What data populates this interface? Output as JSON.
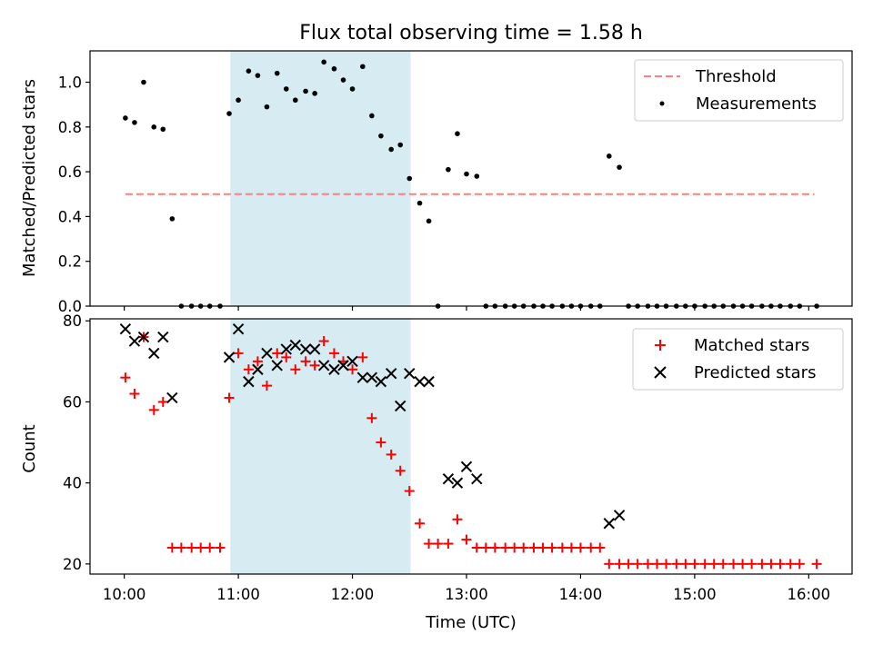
{
  "title": "Flux total observing time = 1.58 h",
  "x_ticks": [
    "10:00",
    "11:00",
    "12:00",
    "13:00",
    "14:00",
    "15:00",
    "16:00"
  ],
  "x_tick_hours": [
    10,
    11,
    12,
    13,
    14,
    15,
    16
  ],
  "xlabel": "Time (UTC)",
  "xlim": [
    9.7,
    16.38
  ],
  "shaded_span": {
    "start": 10.93,
    "end": 12.51,
    "color": "#add8e6"
  },
  "chart_data": [
    {
      "type": "scatter",
      "ylabel": "Matched/Predicted stars",
      "ylim": [
        0,
        1.14
      ],
      "y_ticks": [
        "0.0",
        "0.2",
        "0.4",
        "0.6",
        "0.8",
        "1.0"
      ],
      "y_tick_values": [
        0,
        0.2,
        0.4,
        0.6,
        0.8,
        1.0
      ],
      "legend": {
        "placement": "top-right",
        "threshold_label": "Threshold",
        "measurements_label": "Measurements"
      },
      "threshold": {
        "name": "Threshold",
        "value": 0.5,
        "x_range": [
          10.01,
          16.05
        ],
        "color": "#ff7f7f"
      },
      "series": [
        {
          "name": "Measurements",
          "color": "#000000",
          "x": [
            10.01,
            10.09,
            10.17,
            10.26,
            10.34,
            10.42,
            10.5,
            10.59,
            10.67,
            10.75,
            10.84,
            10.92,
            11.0,
            11.09,
            11.17,
            11.25,
            11.34,
            11.42,
            11.5,
            11.59,
            11.67,
            11.75,
            11.84,
            11.92,
            12.0,
            12.09,
            12.17,
            12.25,
            12.34,
            12.42,
            12.5,
            12.59,
            12.67,
            12.75,
            12.84,
            12.92,
            13.0,
            13.09,
            13.17,
            13.25,
            13.34,
            13.42,
            13.5,
            13.59,
            13.67,
            13.75,
            13.84,
            13.92,
            14.0,
            14.09,
            14.17,
            14.25,
            14.34,
            14.42,
            14.5,
            14.59,
            14.67,
            14.75,
            14.84,
            14.92,
            15.0,
            15.09,
            15.17,
            15.25,
            15.34,
            15.42,
            15.5,
            15.59,
            15.67,
            15.75,
            15.84,
            15.92,
            16.07
          ],
          "y": [
            0.84,
            0.82,
            1.0,
            0.8,
            0.79,
            0.39,
            0.0,
            0.0,
            0.0,
            0.0,
            0.0,
            0.86,
            0.92,
            1.05,
            1.03,
            0.89,
            1.04,
            0.97,
            0.92,
            0.96,
            0.95,
            1.09,
            1.06,
            1.01,
            0.97,
            1.07,
            0.85,
            0.76,
            0.7,
            0.72,
            0.57,
            0.46,
            0.38,
            0.0,
            0.61,
            0.77,
            0.59,
            0.58,
            0.0,
            0.0,
            0.0,
            0.0,
            0.0,
            0.0,
            0.0,
            0.0,
            0.0,
            0.0,
            0.0,
            0.0,
            0.0,
            0.67,
            0.62,
            0.0,
            0.0,
            0.0,
            0.0,
            0.0,
            0.0,
            0.0,
            0.0,
            0.0,
            0.0,
            0.0,
            0.0,
            0.0,
            0.0,
            0.0,
            0.0,
            0.0,
            0.0,
            0.0,
            0.0
          ]
        }
      ]
    },
    {
      "type": "scatter",
      "ylabel": "Count",
      "ylim": [
        17.5,
        80.5
      ],
      "y_ticks": [
        "20",
        "40",
        "60",
        "80"
      ],
      "y_tick_values": [
        20,
        40,
        60,
        80
      ],
      "legend": {
        "placement": "top-right",
        "matched_label": "Matched stars",
        "predicted_label": "Predicted stars"
      },
      "series": [
        {
          "name": "Matched stars",
          "marker": "+",
          "color": "#ff0000",
          "x": [
            10.01,
            10.09,
            10.17,
            10.26,
            10.34,
            10.42,
            10.5,
            10.59,
            10.67,
            10.75,
            10.84,
            10.92,
            11.0,
            11.09,
            11.17,
            11.25,
            11.34,
            11.42,
            11.5,
            11.59,
            11.67,
            11.75,
            11.84,
            11.92,
            12.0,
            12.09,
            12.17,
            12.25,
            12.34,
            12.42,
            12.5,
            12.59,
            12.67,
            12.75,
            12.84,
            12.92,
            13.0,
            13.09,
            13.17,
            13.25,
            13.34,
            13.42,
            13.5,
            13.59,
            13.67,
            13.75,
            13.84,
            13.92,
            14.0,
            14.09,
            14.17,
            14.25,
            14.34,
            14.42,
            14.5,
            14.59,
            14.67,
            14.75,
            14.84,
            14.92,
            15.0,
            15.09,
            15.17,
            15.25,
            15.34,
            15.42,
            15.5,
            15.59,
            15.67,
            15.75,
            15.84,
            15.92,
            16.07
          ],
          "y": [
            66,
            62,
            76,
            58,
            60,
            24,
            24,
            24,
            24,
            24,
            24,
            61,
            72,
            68,
            70,
            64,
            72,
            71,
            68,
            70,
            69,
            75,
            72,
            70,
            68,
            71,
            56,
            50,
            47,
            43,
            38,
            30,
            25,
            25,
            25,
            31,
            26,
            24,
            24,
            24,
            24,
            24,
            24,
            24,
            24,
            24,
            24,
            24,
            24,
            24,
            24,
            20,
            20,
            20,
            20,
            20,
            20,
            20,
            20,
            20,
            20,
            20,
            20,
            20,
            20,
            20,
            20,
            20,
            20,
            20,
            20,
            20,
            20
          ]
        },
        {
          "name": "Predicted stars",
          "marker": "x",
          "color": "#000000",
          "x": [
            10.01,
            10.09,
            10.17,
            10.26,
            10.34,
            10.42,
            10.92,
            11.0,
            11.09,
            11.17,
            11.25,
            11.34,
            11.42,
            11.5,
            11.59,
            11.67,
            11.75,
            11.84,
            11.92,
            12.0,
            12.09,
            12.17,
            12.25,
            12.34,
            12.42,
            12.5,
            12.59,
            12.67,
            12.84,
            12.92,
            13.0,
            13.09,
            14.25,
            14.34
          ],
          "y": [
            78,
            75,
            76,
            72,
            76,
            61,
            71,
            78,
            65,
            68,
            72,
            69,
            73,
            74,
            73,
            73,
            69,
            68,
            69,
            70,
            66,
            66,
            65,
            67,
            59,
            67,
            65,
            65,
            41,
            40,
            44,
            41,
            30,
            32
          ]
        }
      ]
    }
  ]
}
